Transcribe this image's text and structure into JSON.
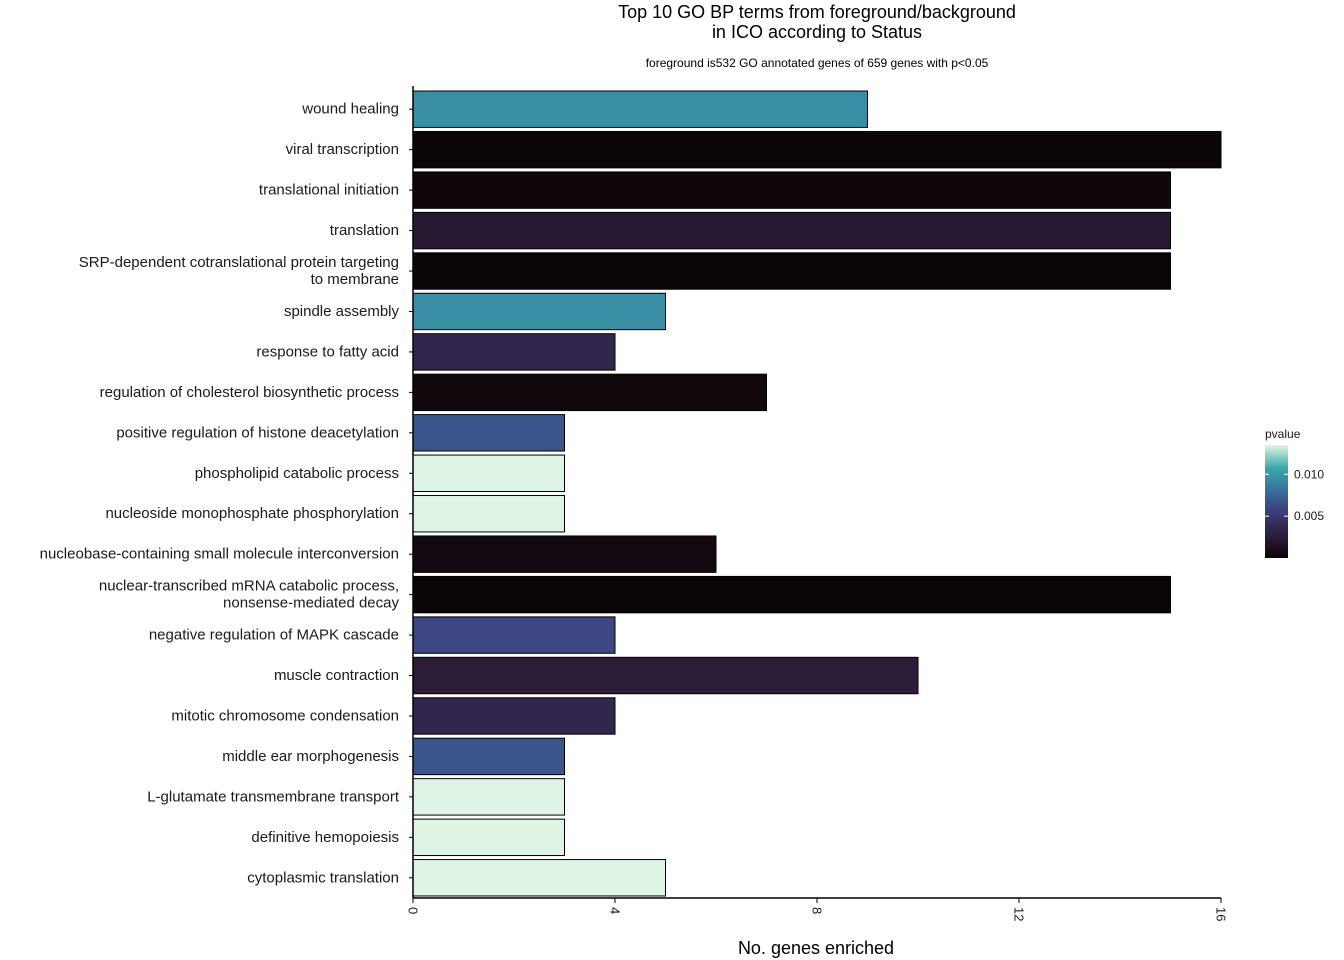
{
  "chart_data": {
    "type": "bar",
    "orientation": "horizontal",
    "title_line1": "Top 10 GO BP terms from foreground/background",
    "title_line2": "in ICO according to Status",
    "subtitle": "foreground is532 GO annotated genes of 659 genes with p<0.05",
    "xlabel": "No. genes enriched",
    "ylabel": "",
    "xlim": [
      0,
      16
    ],
    "xticks": [
      "0",
      "4",
      "8",
      "12",
      "16"
    ],
    "grid": false,
    "legend": {
      "title": "pvalue",
      "position": "right",
      "ticks": [
        "0.010",
        "0.005"
      ],
      "range": [
        0,
        0.0135
      ]
    },
    "categories": [
      [
        "wound healing"
      ],
      [
        "viral transcription"
      ],
      [
        "translational initiation"
      ],
      [
        "translation"
      ],
      [
        "SRP-dependent cotranslational protein targeting",
        "to membrane"
      ],
      [
        "spindle assembly"
      ],
      [
        "response to fatty acid"
      ],
      [
        "regulation of cholesterol biosynthetic process"
      ],
      [
        "positive regulation of histone deacetylation"
      ],
      [
        "phospholipid catabolic process"
      ],
      [
        "nucleoside monophosphate phosphorylation"
      ],
      [
        "nucleobase-containing small molecule interconversion"
      ],
      [
        "nuclear-transcribed mRNA catabolic process,",
        "nonsense-mediated decay"
      ],
      [
        "negative regulation of MAPK cascade"
      ],
      [
        "muscle contraction"
      ],
      [
        "mitotic chromosome condensation"
      ],
      [
        "middle ear morphogenesis"
      ],
      [
        "L-glutamate transmembrane transport"
      ],
      [
        "definitive hemopoiesis"
      ],
      [
        "cytoplasmic translation"
      ]
    ],
    "values": [
      9,
      16,
      15,
      15,
      15,
      5,
      4,
      7,
      3,
      3,
      3,
      6,
      15,
      4,
      10,
      4,
      3,
      3,
      3,
      5
    ],
    "pvalues": [
      0.0095,
      0.0001,
      0.0003,
      0.0022,
      0.0001,
      0.0095,
      0.0035,
      0.0004,
      0.0068,
      0.0135,
      0.0135,
      0.0006,
      0.0001,
      0.006,
      0.0025,
      0.0035,
      0.0068,
      0.0135,
      0.0135,
      0.0135
    ]
  }
}
